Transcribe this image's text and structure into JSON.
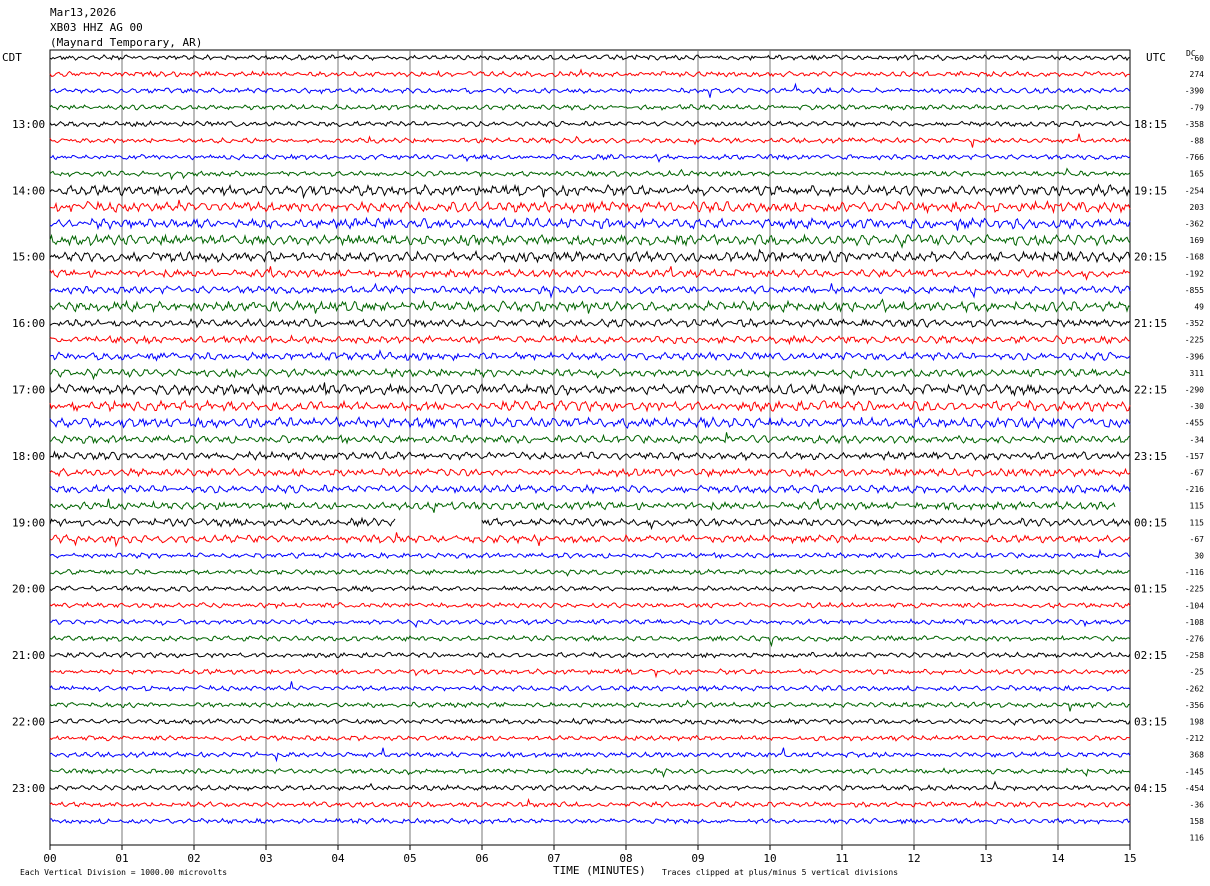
{
  "header": {
    "date": "Mar13,2026",
    "station": "XB03 HHZ AG 00",
    "location": "(Maynard Temporary, AR)"
  },
  "labels": {
    "left_tz": "CDT",
    "right_tz": "UTC",
    "dc_header": "DC",
    "footer_scale": "Each Vertical Division = 1000.00 microvolts",
    "footer_clip": "Traces clipped at plus/minus 5 vertical divisions"
  },
  "colors": {
    "trace_cycle": [
      "#000000",
      "#ff0000",
      "#0000ff",
      "#006400"
    ],
    "grid": "#000000"
  },
  "chart_data": {
    "type": "line",
    "subtype": "helicorder",
    "xlabel": "TIME (MINUTES)",
    "xlim": [
      0,
      15
    ],
    "x_ticks": [
      "00",
      "01",
      "02",
      "03",
      "04",
      "05",
      "06",
      "07",
      "08",
      "09",
      "10",
      "11",
      "12",
      "13",
      "14",
      "15"
    ],
    "minutes_per_line": 15,
    "line_count": 47,
    "left_time_labels": [
      {
        "line": 4,
        "label": "13:00"
      },
      {
        "line": 8,
        "label": "14:00"
      },
      {
        "line": 12,
        "label": "15:00"
      },
      {
        "line": 16,
        "label": "16:00"
      },
      {
        "line": 20,
        "label": "17:00"
      },
      {
        "line": 24,
        "label": "18:00"
      },
      {
        "line": 28,
        "label": "19:00"
      },
      {
        "line": 32,
        "label": "20:00"
      },
      {
        "line": 36,
        "label": "21:00"
      },
      {
        "line": 40,
        "label": "22:00"
      },
      {
        "line": 44,
        "label": "23:00"
      }
    ],
    "right_time_labels": [
      {
        "line": 4,
        "label": "18:15"
      },
      {
        "line": 8,
        "label": "19:15"
      },
      {
        "line": 12,
        "label": "20:15"
      },
      {
        "line": 16,
        "label": "21:15"
      },
      {
        "line": 20,
        "label": "22:15"
      },
      {
        "line": 24,
        "label": "23:15"
      },
      {
        "line": 28,
        "label": "00:15"
      },
      {
        "line": 32,
        "label": "01:15"
      },
      {
        "line": 36,
        "label": "02:15"
      },
      {
        "line": 40,
        "label": "03:15"
      },
      {
        "line": 44,
        "label": "04:15"
      }
    ],
    "dc_offsets": [
      "-60",
      "274",
      "-390",
      "-79",
      "-358",
      "-88",
      "-766",
      "165",
      "-254",
      "203",
      "-362",
      "169",
      "-168",
      "-192",
      "-855",
      "49",
      "-352",
      "-225",
      "-396",
      "311",
      "-290",
      "-30",
      "-455",
      "-34",
      "-157",
      "-67",
      "-216",
      "115",
      "115",
      "-67",
      "30",
      "-116",
      "-225",
      "-104",
      "-108",
      "-276",
      "-258",
      "-25",
      "-262",
      "-356",
      "198",
      "-212",
      "368",
      "-145",
      "-454",
      "-36",
      "158",
      "116"
    ],
    "trace_amplitude_level": [
      2,
      2,
      2,
      2,
      2,
      2,
      2,
      2,
      4,
      4,
      4,
      4,
      4,
      3,
      3,
      4,
      3,
      3,
      3,
      3,
      4,
      4,
      4,
      3,
      3,
      3,
      3,
      3,
      3,
      3,
      2,
      2,
      2,
      2,
      2,
      2,
      2,
      2,
      2,
      2,
      2,
      2,
      2,
      2,
      2,
      2,
      2
    ],
    "trace_end_minute": [
      15,
      15,
      15,
      15,
      15,
      15,
      15,
      15,
      15,
      15,
      15,
      15,
      15,
      15,
      15,
      15,
      15,
      15,
      15,
      15,
      15,
      15,
      15,
      15,
      15,
      15,
      15,
      14.8,
      4.8,
      15,
      15,
      15,
      15,
      15,
      15,
      15,
      15,
      15,
      15,
      15,
      15,
      15,
      15,
      15,
      15,
      15,
      15
    ],
    "trace_resume_minute": {
      "28": 6.0
    }
  }
}
